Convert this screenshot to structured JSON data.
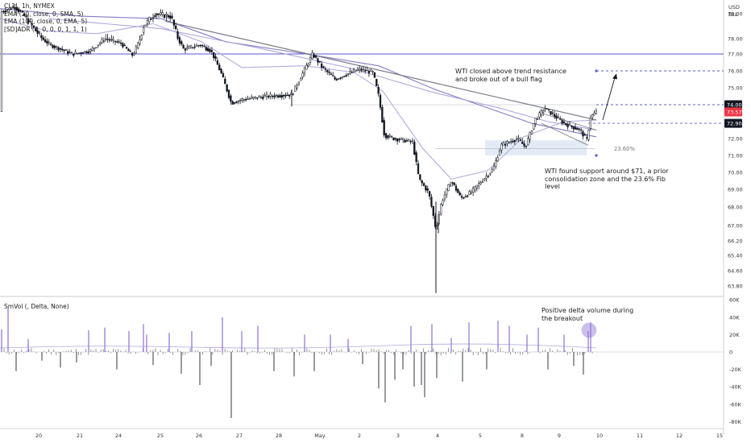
{
  "header": {
    "symbol": "CL1!, 1h, NYMEX",
    "ind1": "EMA (20, close, 0, SMA, 5)",
    "ind2": "EMA (100, close, 0, EMA, 5)",
    "ind3": "[SD]ADR (1, 0, 0, 0, 1, 1, 1)",
    "currency": "USD",
    "unit": "BLL"
  },
  "volume_panel": {
    "title": "SmVol (, Delta, None)"
  },
  "annotations": {
    "breakout": "WTI closed above trend resistance and broke out of a bull flag",
    "support": "WTI found support around $71, a prior consolidation zone and the 23.6% Fib level",
    "delta": "Positive delta volume during the breakout",
    "fib": "23.60%"
  },
  "colors": {
    "candle": "#131722",
    "ema_fast": "#b1a7df",
    "ema_slow": "#7e73c0",
    "trendline": "#787b86",
    "levels": "#5b5cc9",
    "badge_dark": "#131722",
    "badge_red": "#f23645",
    "highlight": "#8e70d3",
    "zone": "#d7e2f2"
  },
  "chart_data": [
    {
      "type": "candlestick",
      "title": "CL1!, 1h, NYMEX",
      "ylabel": "USD / BLL",
      "ylim": [
        63.2,
        79.6
      ],
      "x_tick_labels": [
        "20",
        "21",
        "24",
        "25",
        "26",
        "27",
        "28",
        "May",
        "2",
        "3",
        "4",
        "5",
        "8",
        "9",
        "10",
        "11",
        "12",
        "15"
      ],
      "y_tick_labels": [
        "79.00",
        "78.00",
        "77.00",
        "76.00",
        "75.00",
        "74.00",
        "73.00",
        "72.00",
        "71.00",
        "70.00",
        "69.00",
        "68.00",
        "67.00",
        "66.20",
        "65.40",
        "64.60",
        "63.80"
      ],
      "price_path": [
        [
          0,
          79.1
        ],
        [
          18,
          79.4
        ],
        [
          40,
          78.5
        ],
        [
          62,
          77.6
        ],
        [
          90,
          77.0
        ],
        [
          112,
          77.2
        ],
        [
          130,
          78.0
        ],
        [
          150,
          77.7
        ],
        [
          165,
          76.9
        ],
        [
          178,
          78.5
        ],
        [
          192,
          79.0
        ],
        [
          212,
          78.9
        ],
        [
          228,
          77.3
        ],
        [
          248,
          77.6
        ],
        [
          262,
          77.2
        ],
        [
          275,
          75.8
        ],
        [
          287,
          74.1
        ],
        [
          300,
          74.3
        ],
        [
          330,
          74.5
        ],
        [
          362,
          74.6
        ],
        [
          375,
          75.8
        ],
        [
          388,
          77.0
        ],
        [
          400,
          76.2
        ],
        [
          416,
          75.5
        ],
        [
          430,
          75.8
        ],
        [
          446,
          76.1
        ],
        [
          463,
          75.9
        ],
        [
          470,
          74.5
        ],
        [
          477,
          72.2
        ],
        [
          489,
          72.0
        ],
        [
          512,
          71.8
        ],
        [
          520,
          69.6
        ],
        [
          532,
          68.8
        ],
        [
          541,
          66.8
        ],
        [
          548,
          68.3
        ],
        [
          560,
          69.5
        ],
        [
          572,
          68.5
        ],
        [
          584,
          68.8
        ],
        [
          596,
          69.4
        ],
        [
          612,
          70.2
        ],
        [
          622,
          71.6
        ],
        [
          642,
          72.0
        ],
        [
          652,
          71.5
        ],
        [
          664,
          73.1
        ],
        [
          676,
          73.8
        ],
        [
          700,
          72.9
        ],
        [
          720,
          72.5
        ],
        [
          728,
          71.9
        ],
        [
          733,
          73.3
        ],
        [
          741,
          73.6
        ]
      ],
      "series": [
        {
          "name": "EMA 20",
          "values": [
            [
              0,
              78.8
            ],
            [
              60,
              78.3
            ],
            [
              120,
              78.2
            ],
            [
              190,
              78.6
            ],
            [
              250,
              77.8
            ],
            [
              300,
              76.2
            ],
            [
              380,
              76.3
            ],
            [
              440,
              75.9
            ],
            [
              475,
              74.8
            ],
            [
              525,
              71.4
            ],
            [
              560,
              69.6
            ],
            [
              605,
              70.1
            ],
            [
              650,
              72.1
            ],
            [
              700,
              73.0
            ],
            [
              740,
              73.1
            ]
          ]
        },
        {
          "name": "EMA 100",
          "values": [
            [
              0,
              79.3
            ],
            [
              100,
              78.9
            ],
            [
              200,
              78.8
            ],
            [
              280,
              77.8
            ],
            [
              380,
              77.0
            ],
            [
              470,
              76.3
            ],
            [
              540,
              74.9
            ],
            [
              600,
              73.9
            ],
            [
              660,
              72.9
            ],
            [
              740,
              72.1
            ]
          ]
        },
        {
          "name": "SD ADR",
          "values": [
            [
              60,
              78.8
            ],
            [
              200,
              78.4
            ],
            [
              320,
              77.4
            ],
            [
              440,
              76.1
            ],
            [
              540,
              74.7
            ],
            [
              620,
              73.8
            ],
            [
              680,
              73.0
            ],
            [
              740,
              72.5
            ]
          ]
        }
      ],
      "horizontal_levels": [
        77.0,
        76.0,
        74.0,
        72.9
      ],
      "trendlines": [
        {
          "from": [
            205,
            78.7
          ],
          "to": [
            740,
            73.1
          ]
        }
      ],
      "markers": {
        "price_badges": [
          "74.00",
          "73.57",
          "72.90"
        ]
      }
    },
    {
      "type": "bar",
      "title": "SmVol (, Delta, None)",
      "ylim": [
        -88000,
        64000
      ],
      "y_tick_labels": [
        "60K",
        "40K",
        "20K",
        "0",
        "-20K",
        "-40K",
        "-60K",
        "-80K"
      ],
      "bar_count": 240,
      "spikes": [
        [
          2,
          26000
        ],
        [
          10,
          50000
        ],
        [
          20,
          -22000
        ],
        [
          35,
          15000
        ],
        [
          52,
          -10000
        ],
        [
          75,
          -18000
        ],
        [
          95,
          -12000
        ],
        [
          110,
          25000
        ],
        [
          130,
          28000
        ],
        [
          145,
          -20000
        ],
        [
          160,
          24000
        ],
        [
          178,
          32000
        ],
        [
          182,
          20000
        ],
        [
          190,
          -15000
        ],
        [
          210,
          22000
        ],
        [
          225,
          -25000
        ],
        [
          238,
          24000
        ],
        [
          248,
          -38000
        ],
        [
          262,
          -16000
        ],
        [
          276,
          40000
        ],
        [
          287,
          -76000
        ],
        [
          300,
          24000
        ],
        [
          320,
          30000
        ],
        [
          340,
          -22000
        ],
        [
          365,
          -28000
        ],
        [
          378,
          20000
        ],
        [
          390,
          -22000
        ],
        [
          410,
          20000
        ],
        [
          432,
          15000
        ],
        [
          450,
          -14000
        ],
        [
          470,
          -42000
        ],
        [
          478,
          -58000
        ],
        [
          490,
          -32000
        ],
        [
          500,
          -20000
        ],
        [
          510,
          30000
        ],
        [
          514,
          -40000
        ],
        [
          523,
          -38000
        ],
        [
          527,
          -52000
        ],
        [
          536,
          32000
        ],
        [
          542,
          -30000
        ],
        [
          560,
          16000
        ],
        [
          574,
          -34000
        ],
        [
          582,
          34000
        ],
        [
          604,
          -20000
        ],
        [
          618,
          36000
        ],
        [
          632,
          30000
        ],
        [
          654,
          20000
        ],
        [
          668,
          28000
        ],
        [
          680,
          -20000
        ],
        [
          700,
          20000
        ],
        [
          712,
          -16000
        ],
        [
          724,
          -26000
        ],
        [
          730,
          24000
        ],
        [
          733,
          34000
        ]
      ]
    }
  ]
}
